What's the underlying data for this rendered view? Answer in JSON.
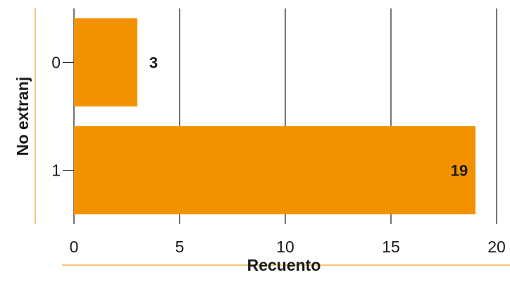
{
  "chart_data": {
    "type": "bar",
    "orientation": "horizontal",
    "categories": [
      "0",
      "1"
    ],
    "values": [
      3,
      19
    ],
    "data_labels": [
      "3",
      "19"
    ],
    "xlabel": "Recuento",
    "ylabel": "No extranj",
    "xlim": [
      0,
      20
    ],
    "xticks": [
      "0",
      "5",
      "10",
      "15",
      "20"
    ],
    "grid": "vertical",
    "legend": "none"
  },
  "colors": {
    "bar": "#f39200",
    "axis_accent": "#f3b24d",
    "grid": "#1a1a1a",
    "text": "#1a1a1a"
  }
}
